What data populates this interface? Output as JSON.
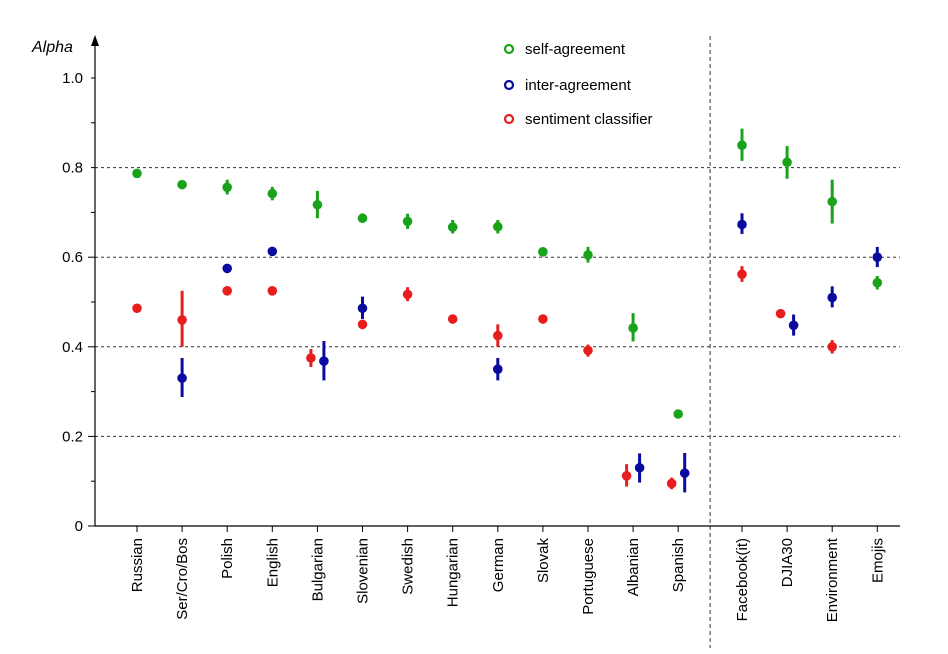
{
  "chart_data": {
    "type": "scatter",
    "ylabel": "Alpha",
    "ylim": [
      0,
      1.0
    ],
    "yticks": [
      "0",
      "0.2",
      "0.4",
      "0.6",
      "0.8",
      "1.0"
    ],
    "yticks_values": [
      0,
      0.2,
      0.4,
      0.6,
      0.8,
      1.0
    ],
    "gridlines_y": [
      0.2,
      0.4,
      0.6,
      0.8
    ],
    "separator_after_category": "Spanish",
    "categories": [
      "Russian",
      "Ser/Cro/Bos",
      "Polish",
      "English",
      "Bulgarian",
      "Slovenian",
      "Swedish",
      "Hungarian",
      "German",
      "Slovak",
      "Portuguese",
      "Albanian",
      "Spanish",
      "Facebook(it)",
      "DJIA30",
      "Environment",
      "Emojis"
    ],
    "legend_position": "top-center",
    "series": [
      {
        "name": "self-agreement",
        "color": "#1aa31a",
        "values": [
          0.787,
          0.762,
          0.756,
          0.742,
          0.717,
          0.687,
          0.68,
          0.667,
          0.668,
          0.612,
          0.605,
          0.442,
          0.25,
          0.85,
          0.812,
          0.724,
          0.543
        ],
        "err_low": [
          0.779,
          0.753,
          0.74,
          0.727,
          0.687,
          0.677,
          0.663,
          0.653,
          0.653,
          0.602,
          0.588,
          0.412,
          0.24,
          0.815,
          0.775,
          0.675,
          0.528
        ],
        "err_high": [
          0.796,
          0.77,
          0.773,
          0.757,
          0.748,
          0.697,
          0.697,
          0.683,
          0.683,
          0.622,
          0.623,
          0.475,
          0.26,
          0.887,
          0.848,
          0.773,
          0.558
        ]
      },
      {
        "name": "inter-agreement",
        "color": "#0a0a9e",
        "values": [
          null,
          0.33,
          0.575,
          0.613,
          0.368,
          0.486,
          null,
          null,
          0.35,
          null,
          null,
          0.13,
          0.118,
          0.673,
          0.448,
          0.51,
          0.6
        ],
        "err_low": [
          null,
          0.288,
          0.567,
          0.605,
          0.325,
          0.462,
          null,
          null,
          0.325,
          null,
          null,
          0.097,
          0.075,
          0.652,
          0.425,
          0.488,
          0.578
        ],
        "err_high": [
          null,
          0.375,
          0.583,
          0.621,
          0.413,
          0.512,
          null,
          null,
          0.375,
          null,
          null,
          0.162,
          0.163,
          0.698,
          0.472,
          0.535,
          0.623
        ]
      },
      {
        "name": "sentiment classifier",
        "color": "#e81e1e",
        "values": [
          0.486,
          0.46,
          0.525,
          0.525,
          0.375,
          0.45,
          0.517,
          0.462,
          0.425,
          0.462,
          0.392,
          0.112,
          0.095,
          0.562,
          0.474,
          0.4,
          null
        ],
        "err_low": [
          0.478,
          0.4,
          0.517,
          0.517,
          0.355,
          0.44,
          0.502,
          0.454,
          0.4,
          0.454,
          0.378,
          0.088,
          0.082,
          0.545,
          0.466,
          0.385,
          null
        ],
        "err_high": [
          0.494,
          0.525,
          0.533,
          0.533,
          0.395,
          0.46,
          0.533,
          0.47,
          0.45,
          0.47,
          0.405,
          0.138,
          0.108,
          0.58,
          0.482,
          0.415,
          null
        ]
      }
    ]
  }
}
